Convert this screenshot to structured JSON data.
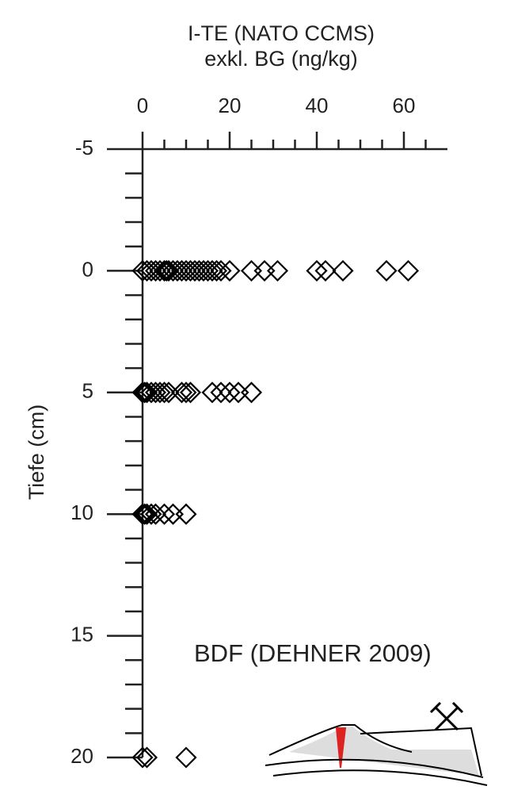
{
  "chart_data": {
    "type": "scatter",
    "title": [
      "I-TE (NATO CCMS)",
      "exkl. BG (ng/kg)"
    ],
    "ylabel": "Tiefe (cm)",
    "annotation": "BDF (DEHNER 2009)",
    "x": [
      0,
      1,
      2,
      3,
      4,
      5,
      5.5,
      6,
      7,
      8,
      9,
      10,
      11,
      12,
      13,
      14,
      15,
      16,
      17,
      18,
      20,
      25,
      28,
      31,
      40,
      42,
      46,
      56,
      61,
      0,
      0.5,
      1,
      2,
      3,
      4,
      5,
      6,
      9,
      10,
      11,
      16,
      18,
      20,
      22,
      25,
      0,
      0.5,
      1,
      2,
      3,
      5,
      7,
      10,
      0,
      1,
      10
    ],
    "y": [
      0,
      0,
      0,
      0,
      0,
      0,
      0,
      0,
      0,
      0,
      0,
      0,
      0,
      0,
      0,
      0,
      0,
      0,
      0,
      0,
      0,
      0,
      0,
      0,
      0,
      0,
      0,
      0,
      0,
      5,
      5,
      5,
      5,
      5,
      5,
      5,
      5,
      5,
      5,
      5,
      5,
      5,
      5,
      5,
      5,
      10,
      10,
      10,
      10,
      10,
      10,
      10,
      10,
      20,
      20,
      20
    ],
    "color": "#000000",
    "xlim": [
      0,
      70
    ],
    "xticks": [
      0,
      20,
      40,
      60
    ],
    "xminorticks": [
      5,
      10,
      15,
      25,
      30,
      35,
      45,
      50,
      55,
      65
    ],
    "ylim": [
      -5,
      20
    ],
    "yticks": [
      -5,
      0,
      5,
      10,
      15,
      20
    ],
    "yminorticks": [
      -4,
      -3,
      -2,
      -1,
      1,
      2,
      3,
      4,
      6,
      7,
      8,
      9,
      11,
      12,
      13,
      14,
      16,
      17,
      18,
      19
    ],
    "yinverted": true
  }
}
